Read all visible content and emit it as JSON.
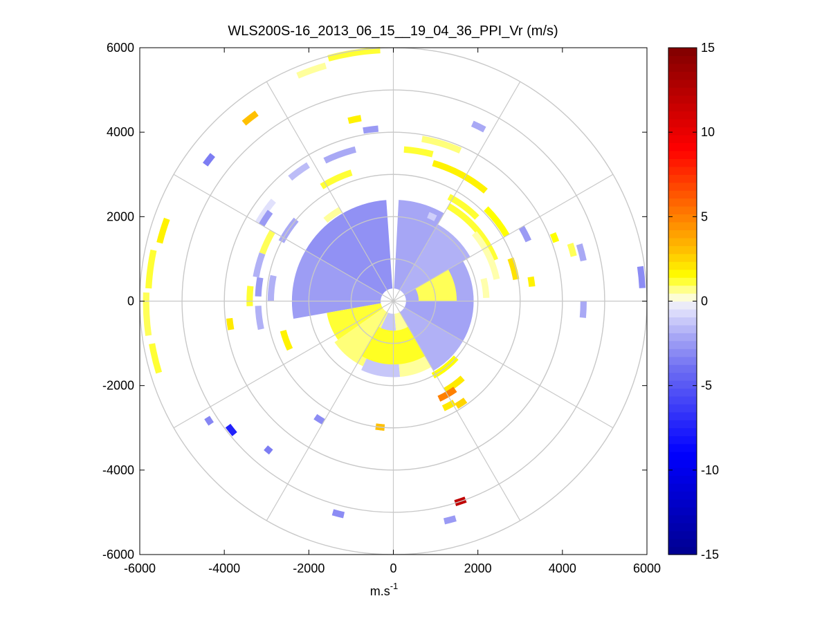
{
  "chart_data": {
    "type": "heatmap",
    "subtype": "polar PPI scan",
    "title": "WLS200S-16_2013_06_15__19_04_36_PPI_Vr (m/s)",
    "xlabel": {
      "base": "m.s",
      "sup": "-1"
    },
    "ylabel": "",
    "xlim": [
      -6000,
      6000
    ],
    "ylim": [
      -6000,
      6000
    ],
    "x_ticks": [
      -6000,
      -4000,
      -2000,
      0,
      2000,
      4000,
      6000
    ],
    "y_ticks": [
      -6000,
      -4000,
      -2000,
      0,
      2000,
      4000,
      6000
    ],
    "x_tick_labels": [
      "-6000",
      "-4000",
      "-2000",
      "0",
      "2000",
      "4000",
      "6000"
    ],
    "y_tick_labels": [
      "-6000",
      "-4000",
      "-2000",
      "0",
      "2000",
      "4000",
      "6000"
    ],
    "polar_grid": {
      "ring_radii": [
        1000,
        2000,
        3000,
        4000,
        5000,
        6000
      ],
      "spoke_angles_deg": [
        0,
        30,
        60,
        90,
        120,
        150,
        180,
        210,
        240,
        270,
        300,
        330
      ],
      "color": "#c8c8c8"
    },
    "colorbar": {
      "clim": [
        -15,
        15
      ],
      "ticks": [
        -15,
        -10,
        -5,
        0,
        5,
        10,
        15
      ],
      "tick_labels": [
        "-15",
        "-10",
        "-5",
        "0",
        "5",
        "10",
        "15"
      ]
    },
    "colormap_anchors": [
      {
        "v": -15,
        "color": "#00008f"
      },
      {
        "v": -9,
        "color": "#0000ff"
      },
      {
        "v": -4,
        "color": "#6e6ef2"
      },
      {
        "v": -2,
        "color": "#a9a9f5"
      },
      {
        "v": -0.3,
        "color": "#e9e9fd"
      },
      {
        "v": 0.3,
        "color": "#ffffd0"
      },
      {
        "v": 1.5,
        "color": "#ffff00"
      },
      {
        "v": 3,
        "color": "#ffc000"
      },
      {
        "v": 5,
        "color": "#ff8000"
      },
      {
        "v": 9,
        "color": "#ff0000"
      },
      {
        "v": 15,
        "color": "#800000"
      }
    ],
    "central_region": {
      "range_max_m": 2400,
      "gap_azimuth_deg": [
        87,
        94
      ],
      "sectors": [
        {
          "az": [
            94,
            150
          ],
          "r": [
            300,
            2400
          ],
          "v": -2.8
        },
        {
          "az": [
            150,
            190
          ],
          "r": [
            300,
            2400
          ],
          "v": -2.4
        },
        {
          "az": [
            190,
            215
          ],
          "r": [
            300,
            1600
          ],
          "v": 1.2
        },
        {
          "az": [
            215,
            245
          ],
          "r": [
            300,
            1700
          ],
          "v": 0.8
        },
        {
          "az": [
            245,
            275
          ],
          "r": [
            300,
            1800
          ],
          "v": -1.2
        },
        {
          "az": [
            275,
            300
          ],
          "r": [
            300,
            1800
          ],
          "v": 0.6
        },
        {
          "az": [
            300,
            330
          ],
          "r": [
            300,
            1900
          ],
          "v": -1.8
        },
        {
          "az": [
            330,
            360
          ],
          "r": [
            300,
            1900
          ],
          "v": -2.2
        },
        {
          "az": [
            0,
            30
          ],
          "r": [
            300,
            1900
          ],
          "v": -2.0
        },
        {
          "az": [
            30,
            60
          ],
          "r": [
            300,
            2100
          ],
          "v": -1.8
        },
        {
          "az": [
            60,
            87
          ],
          "r": [
            300,
            2400
          ],
          "v": -2.1
        },
        {
          "az": [
            0,
            30
          ],
          "r": [
            600,
            1500
          ],
          "v": 1.0
        },
        {
          "az": [
            240,
            300
          ],
          "r": [
            700,
            1500
          ],
          "v": 1.3
        }
      ]
    },
    "scattered_cells": [
      {
        "r": 5950,
        "az": [
          93,
          105
        ],
        "v": 1.2
      },
      {
        "r": 5800,
        "az": [
          106,
          113
        ],
        "v": 0.6
      },
      {
        "r": 5500,
        "az": [
          126,
          130
        ],
        "v": 3.0
      },
      {
        "r": 5500,
        "az": [
          141,
          144
        ],
        "v": -3.5
      },
      {
        "r": 5700,
        "az": [
          160,
          166
        ],
        "v": 1.8
      },
      {
        "r": 5800,
        "az": [
          168,
          177
        ],
        "v": 1.2
      },
      {
        "r": 5850,
        "az": [
          178,
          188
        ],
        "v": 1.0
      },
      {
        "r": 5800,
        "az": [
          190,
          197
        ],
        "v": 1.2
      },
      {
        "r": 5200,
        "az": [
          212,
          214
        ],
        "v": -3.2
      },
      {
        "r": 4900,
        "az": [
          217,
          220
        ],
        "v": -7.5
      },
      {
        "r": 4600,
        "az": [
          229,
          231
        ],
        "v": -3.5
      },
      {
        "r": 3000,
        "az": [
          264,
          266
        ],
        "v": 3.0
      },
      {
        "r": 5000,
        "az": [
          287,
          290
        ],
        "v": 12.0
      },
      {
        "r": 5350,
        "az": [
          283,
          286
        ],
        "v": -2.5
      },
      {
        "r": 5200,
        "az": [
          254,
          257
        ],
        "v": -3.0
      },
      {
        "r": 5900,
        "az": [
          3,
          8
        ],
        "v": -3.0
      },
      {
        "r": 4400,
        "az": [
          14,
          18
        ],
        "v": 1.0
      },
      {
        "r": 4100,
        "az": [
          20,
          23
        ],
        "v": 1.5
      },
      {
        "r": 3300,
        "az": [
          6,
          10
        ],
        "v": 1.8
      },
      {
        "r": 3500,
        "az": [
          24,
          30
        ],
        "v": -2.5
      },
      {
        "r": 4600,
        "az": [
          62,
          66
        ],
        "v": -2.0
      },
      {
        "r": 3900,
        "az": [
          66,
          80
        ],
        "v": 0.8
      },
      {
        "r": 3400,
        "az": [
          50,
          74
        ],
        "v": 1.8
      },
      {
        "r": 3600,
        "az": [
          75,
          86
        ],
        "v": 1.2
      },
      {
        "r": 4100,
        "az": [
          95,
          100
        ],
        "v": -2.5
      },
      {
        "r": 4400,
        "az": [
          100,
          104
        ],
        "v": 1.8
      },
      {
        "r": 3700,
        "az": [
          104,
          116
        ],
        "v": -2.0
      },
      {
        "r": 3200,
        "az": [
          108,
          122
        ],
        "v": 1.2
      },
      {
        "r": 3800,
        "az": [
          122,
          130
        ],
        "v": -1.5
      },
      {
        "r": 3700,
        "az": [
          140,
          150
        ],
        "v": -0.5
      },
      {
        "r": 3300,
        "az": [
          150,
          160
        ],
        "v": 1.0
      },
      {
        "r": 3000,
        "az": [
          140,
          152
        ],
        "v": -2.0
      },
      {
        "r": 3300,
        "az": [
          160,
          170
        ],
        "v": -1.8
      },
      {
        "r": 2900,
        "az": [
          168,
          180
        ],
        "v": -1.8
      },
      {
        "r": 3200,
        "az": [
          182,
          192
        ],
        "v": -1.8
      },
      {
        "r": 2700,
        "az": [
          195,
          205
        ],
        "v": 1.8
      },
      {
        "r": 3900,
        "az": [
          186,
          190
        ],
        "v": 2.0
      },
      {
        "r": 3300,
        "az": [
          236,
          240
        ],
        "v": -3.0
      },
      {
        "r": 3000,
        "az": [
          262,
          266
        ],
        "v": 3.0
      },
      {
        "r": 2900,
        "az": [
          301,
          306
        ],
        "v": 2.5
      },
      {
        "r": 2800,
        "az": [
          295,
          301
        ],
        "v": 2.0
      },
      {
        "r": 2450,
        "az": [
          300,
          312
        ],
        "v": 2.0
      },
      {
        "r": 2000,
        "az": [
          298,
          318
        ],
        "v": 1.5
      },
      {
        "r": 2550,
        "az": [
          295,
          305
        ],
        "v": 5.0
      },
      {
        "r": 2600,
        "az": [
          22,
          60
        ],
        "v": 1.2
      },
      {
        "r": 2500,
        "az": [
          12,
          40
        ],
        "v": 0.5
      },
      {
        "r": 2200,
        "az": [
          2,
          14
        ],
        "v": 0.5
      },
      {
        "r": 2950,
        "az": [
          10,
          20
        ],
        "v": 2.2
      },
      {
        "r": 3100,
        "az": [
          30,
          45
        ],
        "v": 1.5
      },
      {
        "r": 2800,
        "az": [
          45,
          62
        ],
        "v": 1.2
      },
      {
        "r": 2200,
        "az": [
          63,
          68
        ],
        "v": -1.0
      },
      {
        "r": 4500,
        "az": [
          355,
          360
        ],
        "v": -2.0
      },
      {
        "r": 4600,
        "az": [
          12,
          17
        ],
        "v": -2.0
      },
      {
        "r": 3200,
        "az": [
          170,
          178
        ],
        "v": -2.5
      },
      {
        "r": 3400,
        "az": [
          174,
          182
        ],
        "v": 1.2
      },
      {
        "r": 3600,
        "az": [
          144,
          150
        ],
        "v": -2.5
      },
      {
        "r": 2500,
        "az": [
          120,
          130
        ],
        "v": 0.6
      }
    ]
  }
}
